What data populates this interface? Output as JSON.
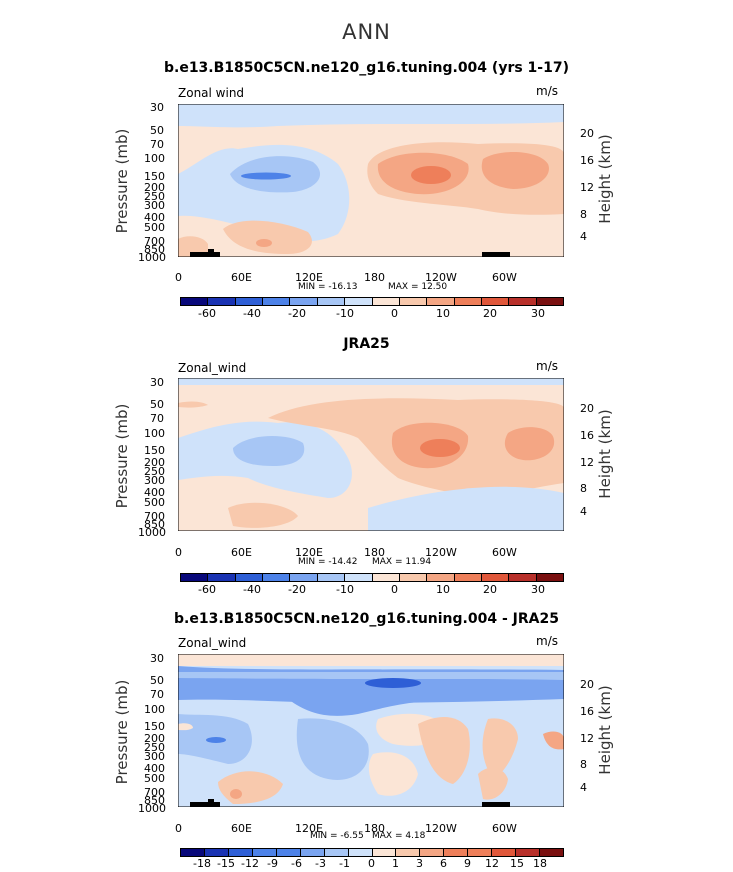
{
  "suptitle": "ANN",
  "chart_data": [
    {
      "type": "heatmap",
      "title": "b.e13.B1850C5CN.ne120_g16.tuning.004 (yrs 1-17)",
      "left_label": "Zonal wind",
      "units": "m/s",
      "ylabel": "Pressure (mb)",
      "ylabel_right": "Height (km)",
      "pressure_ticks": [
        "30",
        "50",
        "70",
        "100",
        "150",
        "200",
        "250",
        "300",
        "400",
        "500",
        "700",
        "850",
        "1000"
      ],
      "height_ticks": [
        "20",
        "16",
        "12",
        "8",
        "4"
      ],
      "lon_ticks": [
        "0",
        "60E",
        "120E",
        "180",
        "120W",
        "60W"
      ],
      "min_label": "MIN = -16.13",
      "max_label": "MAX = 12.50",
      "min": -16.13,
      "max": 12.5,
      "colorbar_labels": [
        "-60",
        "-40",
        "-20",
        "-10",
        "0",
        "10",
        "20",
        "30"
      ]
    },
    {
      "type": "heatmap",
      "title": "JRA25",
      "left_label": "Zonal_wind",
      "units": "m/s",
      "ylabel": "Pressure (mb)",
      "ylabel_right": "Height (km)",
      "pressure_ticks": [
        "30",
        "50",
        "70",
        "100",
        "150",
        "200",
        "250",
        "300",
        "400",
        "500",
        "700",
        "850",
        "1000"
      ],
      "height_ticks": [
        "20",
        "16",
        "12",
        "8",
        "4"
      ],
      "lon_ticks": [
        "0",
        "60E",
        "120E",
        "180",
        "120W",
        "60W"
      ],
      "min_label": "MIN = -14.42",
      "max_label": "MAX = 11.94",
      "min": -14.42,
      "max": 11.94,
      "colorbar_labels": [
        "-60",
        "-40",
        "-20",
        "-10",
        "0",
        "10",
        "20",
        "30"
      ]
    },
    {
      "type": "heatmap",
      "title": "b.e13.B1850C5CN.ne120_g16.tuning.004 - JRA25",
      "left_label": "Zonal_wind",
      "units": "m/s",
      "ylabel": "Pressure (mb)",
      "ylabel_right": "Height (km)",
      "pressure_ticks": [
        "30",
        "50",
        "70",
        "100",
        "150",
        "200",
        "250",
        "300",
        "400",
        "500",
        "700",
        "850",
        "1000"
      ],
      "height_ticks": [
        "20",
        "16",
        "12",
        "8",
        "4"
      ],
      "lon_ticks": [
        "0",
        "60E",
        "120E",
        "180",
        "120W",
        "60W"
      ],
      "min_label": "MIN = -6.55",
      "max_label": "MAX = 4.18",
      "min": -6.55,
      "max": 4.18,
      "colorbar_labels": [
        "-18",
        "-15",
        "-12",
        "-9",
        "-6",
        "-3",
        "-1",
        "0",
        "1",
        "3",
        "6",
        "9",
        "12",
        "15",
        "18"
      ]
    }
  ],
  "colors": {
    "scale": [
      "#08087a",
      "#1a33b3",
      "#2e5fd6",
      "#4d82e8",
      "#7aa4f0",
      "#a7c6f5",
      "#cfe2fa",
      "#fbe5d6",
      "#f8c9ad",
      "#f4a684",
      "#ee7f5a",
      "#e0573a",
      "#b8302a",
      "#7a1010"
    ],
    "bg_light": "#fbe5d6",
    "land": "#000000"
  }
}
